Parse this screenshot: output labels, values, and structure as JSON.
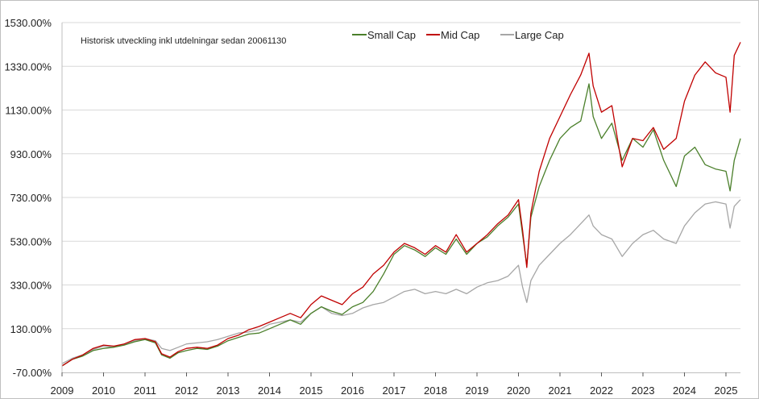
{
  "chart_data": {
    "type": "line",
    "subtitle": "Historisk utveckling inkl utdelningar sedan 20061130",
    "y_ticks": [
      "1530.00%",
      "1330.00%",
      "1130.00%",
      "930.00%",
      "730.00%",
      "530.00%",
      "330.00%",
      "130.00%",
      "-70.00%"
    ],
    "y_tick_values": [
      1530,
      1330,
      1130,
      930,
      730,
      530,
      330,
      130,
      -70
    ],
    "ylim": [
      -70,
      1530
    ],
    "x_ticks": [
      "2009",
      "2010",
      "2011",
      "2012",
      "2013",
      "2014",
      "2015",
      "2016",
      "2017",
      "2018",
      "2019",
      "2020",
      "2021",
      "2022",
      "2023",
      "2024",
      "2025"
    ],
    "x_tick_values": [
      2009,
      2010,
      2011,
      2012,
      2013,
      2014,
      2015,
      2016,
      2017,
      2018,
      2019,
      2020,
      2021,
      2022,
      2023,
      2024,
      2025
    ],
    "xlim": [
      2009,
      2025.35
    ],
    "grid": "horizontal",
    "legend": "top-center",
    "colors": {
      "Small Cap": "#4a7f2a",
      "Mid Cap": "#c00000",
      "Large Cap": "#a6a6a6",
      "grid": "#d9d9d9"
    },
    "series": [
      {
        "name": "Small Cap",
        "x": [
          2009.0,
          2009.25,
          2009.5,
          2009.75,
          2010.0,
          2010.25,
          2010.5,
          2010.75,
          2011.0,
          2011.25,
          2011.4,
          2011.6,
          2011.8,
          2012.0,
          2012.25,
          2012.5,
          2012.75,
          2013.0,
          2013.25,
          2013.5,
          2013.75,
          2014.0,
          2014.25,
          2014.5,
          2014.75,
          2015.0,
          2015.25,
          2015.5,
          2015.75,
          2016.0,
          2016.25,
          2016.5,
          2016.75,
          2017.0,
          2017.25,
          2017.5,
          2017.75,
          2018.0,
          2018.25,
          2018.5,
          2018.75,
          2019.0,
          2019.25,
          2019.5,
          2019.75,
          2020.0,
          2020.1,
          2020.2,
          2020.3,
          2020.5,
          2020.75,
          2021.0,
          2021.25,
          2021.5,
          2021.7,
          2021.8,
          2022.0,
          2022.25,
          2022.5,
          2022.75,
          2023.0,
          2023.25,
          2023.5,
          2023.8,
          2024.0,
          2024.25,
          2024.5,
          2024.75,
          2025.0,
          2025.1,
          2025.2,
          2025.35
        ],
        "values": [
          -40,
          -10,
          5,
          30,
          40,
          45,
          55,
          70,
          80,
          65,
          10,
          -5,
          20,
          30,
          40,
          35,
          50,
          75,
          90,
          105,
          110,
          130,
          150,
          170,
          150,
          200,
          230,
          210,
          195,
          230,
          250,
          300,
          380,
          470,
          510,
          490,
          460,
          500,
          470,
          540,
          470,
          520,
          550,
          600,
          640,
          700,
          560,
          420,
          640,
          780,
          900,
          1000,
          1050,
          1080,
          1250,
          1100,
          1000,
          1070,
          900,
          1000,
          960,
          1040,
          900,
          780,
          920,
          960,
          880,
          860,
          850,
          760,
          900,
          1000
        ]
      },
      {
        "name": "Mid Cap",
        "x": [
          2009.0,
          2009.25,
          2009.5,
          2009.75,
          2010.0,
          2010.25,
          2010.5,
          2010.75,
          2011.0,
          2011.25,
          2011.4,
          2011.6,
          2011.8,
          2012.0,
          2012.25,
          2012.5,
          2012.75,
          2013.0,
          2013.25,
          2013.5,
          2013.75,
          2014.0,
          2014.25,
          2014.5,
          2014.75,
          2015.0,
          2015.25,
          2015.5,
          2015.75,
          2016.0,
          2016.25,
          2016.5,
          2016.75,
          2017.0,
          2017.25,
          2017.5,
          2017.75,
          2018.0,
          2018.25,
          2018.5,
          2018.75,
          2019.0,
          2019.25,
          2019.5,
          2019.75,
          2020.0,
          2020.1,
          2020.2,
          2020.3,
          2020.5,
          2020.75,
          2021.0,
          2021.25,
          2021.5,
          2021.7,
          2021.8,
          2022.0,
          2022.25,
          2022.5,
          2022.75,
          2023.0,
          2023.25,
          2023.5,
          2023.8,
          2024.0,
          2024.25,
          2024.5,
          2024.75,
          2025.0,
          2025.1,
          2025.2,
          2025.35
        ],
        "values": [
          -40,
          -10,
          10,
          40,
          55,
          50,
          60,
          80,
          85,
          70,
          15,
          0,
          25,
          40,
          45,
          40,
          55,
          85,
          100,
          125,
          140,
          160,
          180,
          200,
          180,
          240,
          280,
          260,
          240,
          290,
          320,
          380,
          420,
          480,
          520,
          500,
          470,
          510,
          480,
          560,
          480,
          520,
          560,
          610,
          650,
          720,
          580,
          410,
          660,
          850,
          1000,
          1100,
          1200,
          1290,
          1390,
          1240,
          1120,
          1150,
          870,
          1000,
          990,
          1050,
          950,
          1000,
          1170,
          1290,
          1350,
          1300,
          1280,
          1120,
          1380,
          1440
        ]
      },
      {
        "name": "Large Cap",
        "x": [
          2009.0,
          2009.25,
          2009.5,
          2009.75,
          2010.0,
          2010.25,
          2010.5,
          2010.75,
          2011.0,
          2011.25,
          2011.4,
          2011.6,
          2011.8,
          2012.0,
          2012.25,
          2012.5,
          2012.75,
          2013.0,
          2013.25,
          2013.5,
          2013.75,
          2014.0,
          2014.25,
          2014.5,
          2014.75,
          2015.0,
          2015.25,
          2015.5,
          2015.75,
          2016.0,
          2016.25,
          2016.5,
          2016.75,
          2017.0,
          2017.25,
          2017.5,
          2017.75,
          2018.0,
          2018.25,
          2018.5,
          2018.75,
          2019.0,
          2019.25,
          2019.5,
          2019.75,
          2020.0,
          2020.1,
          2020.2,
          2020.3,
          2020.5,
          2020.75,
          2021.0,
          2021.25,
          2021.5,
          2021.7,
          2021.8,
          2022.0,
          2022.25,
          2022.5,
          2022.75,
          2023.0,
          2023.25,
          2023.5,
          2023.8,
          2024.0,
          2024.25,
          2024.5,
          2024.75,
          2025.0,
          2025.1,
          2025.2,
          2025.35
        ],
        "values": [
          -30,
          -5,
          10,
          35,
          50,
          45,
          60,
          75,
          85,
          75,
          40,
          30,
          45,
          60,
          65,
          70,
          80,
          95,
          110,
          115,
          125,
          150,
          160,
          170,
          160,
          200,
          230,
          200,
          190,
          200,
          225,
          240,
          250,
          275,
          300,
          310,
          290,
          300,
          290,
          310,
          290,
          320,
          340,
          350,
          370,
          420,
          320,
          250,
          350,
          420,
          470,
          520,
          560,
          610,
          650,
          600,
          560,
          540,
          460,
          520,
          560,
          580,
          540,
          520,
          600,
          660,
          700,
          710,
          700,
          590,
          690,
          720
        ]
      }
    ]
  }
}
